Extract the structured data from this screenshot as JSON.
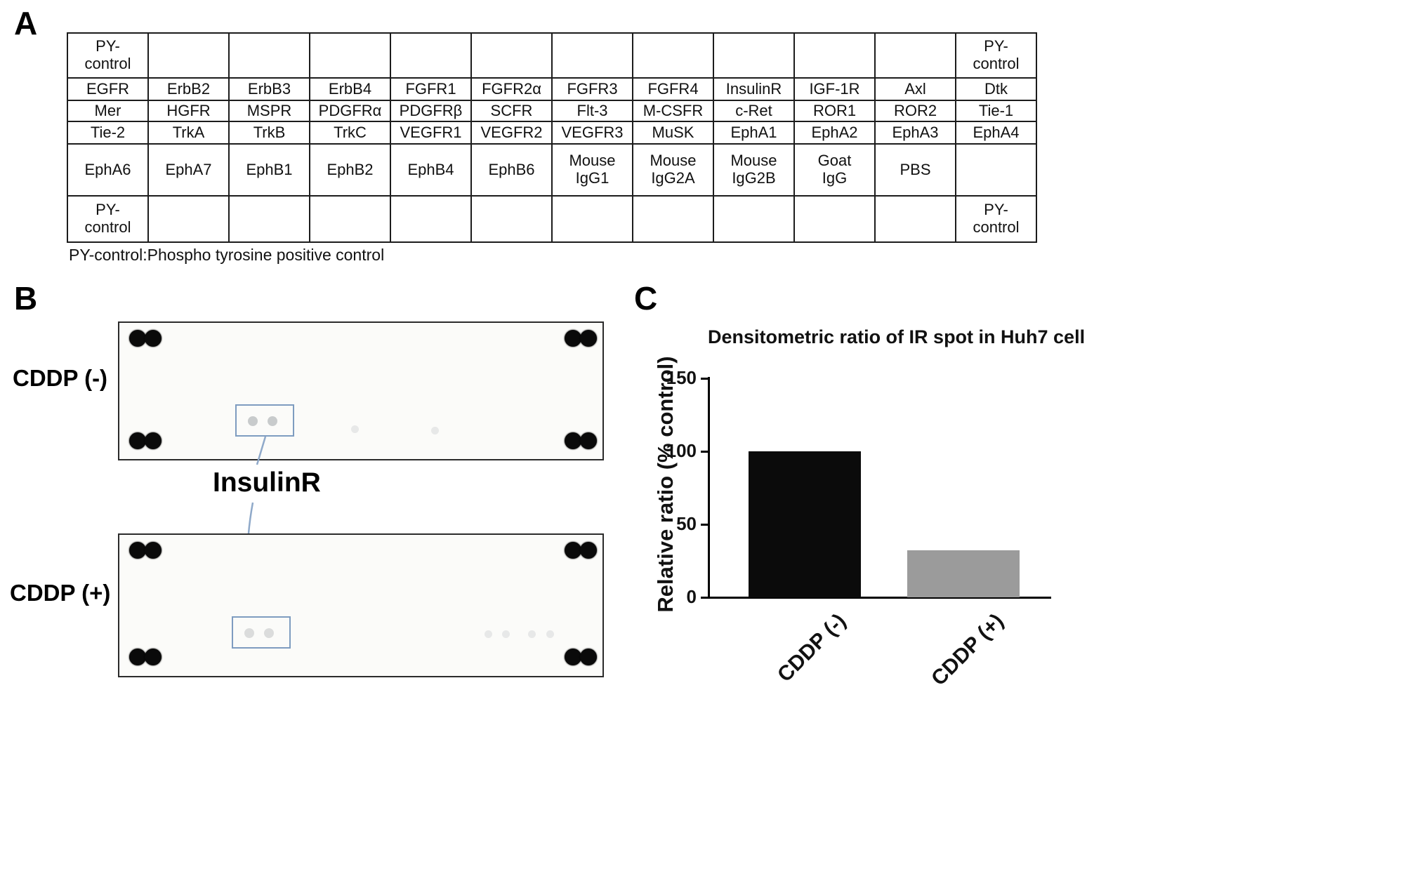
{
  "panels": {
    "a": {
      "label": "A",
      "caption": "PY-control:Phospho tyrosine positive control",
      "table_rows": [
        [
          "PY-\ncontrol",
          "",
          "",
          "",
          "",
          "",
          "",
          "",
          "",
          "",
          "",
          "PY-\ncontrol"
        ],
        [
          "EGFR",
          "ErbB2",
          "ErbB3",
          "ErbB4",
          "FGFR1",
          "FGFR2α",
          "FGFR3",
          "FGFR4",
          "InsulinR",
          "IGF-1R",
          "Axl",
          "Dtk"
        ],
        [
          "Mer",
          "HGFR",
          "MSPR",
          "PDGFRα",
          "PDGFRβ",
          "SCFR",
          "Flt-3",
          "M-CSFR",
          "c-Ret",
          "ROR1",
          "ROR2",
          "Tie-1"
        ],
        [
          "Tie-2",
          "TrkA",
          "TrkB",
          "TrkC",
          "VEGFR1",
          "VEGFR2",
          "VEGFR3",
          "MuSK",
          "EphA1",
          "EphA2",
          "EphA3",
          "EphA4"
        ],
        [
          "EphA6",
          "EphA7",
          "EphB1",
          "EphB2",
          "EphB4",
          "EphB6",
          "Mouse\nIgG1",
          "Mouse\nIgG2A",
          "Mouse\nIgG2B",
          "Goat\nIgG",
          "PBS",
          ""
        ],
        [
          "PY-\ncontrol",
          "",
          "",
          "",
          "",
          "",
          "",
          "",
          "",
          "",
          "",
          "PY-\ncontrol"
        ]
      ]
    },
    "b": {
      "label": "B",
      "blots": [
        {
          "condition": "CDDP (-)"
        },
        {
          "condition": "CDDP (+)"
        }
      ],
      "spot_label": "InsulinR"
    },
    "c": {
      "label": "C"
    }
  },
  "chart_data": {
    "type": "bar",
    "title": "Densitometric ratio of IR spot in Huh7 cell",
    "ylabel": "Relative ratio (% control)",
    "xlabel": "",
    "categories": [
      "CDDP (-)",
      "CDDP (+)"
    ],
    "values": [
      100,
      32
    ],
    "ylim": [
      0,
      150
    ],
    "yticks": [
      0,
      50,
      100,
      150
    ],
    "bar_colors": [
      "#0b0b0b",
      "#9b9b9b"
    ],
    "grid": false,
    "legend": false
  }
}
